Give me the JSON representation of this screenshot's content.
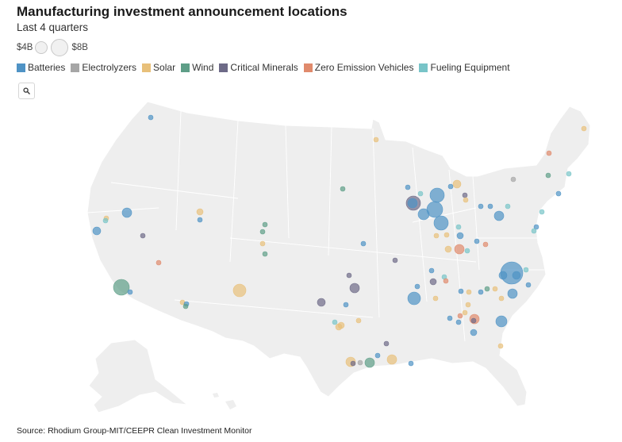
{
  "header": {
    "title": "Manufacturing investment announcement locations",
    "subtitle": "Last 4 quarters"
  },
  "size_legend": {
    "small_label": "$4B",
    "large_label": "$8B"
  },
  "categories": [
    {
      "key": "batteries",
      "label": "Batteries",
      "color": "#4f93c5"
    },
    {
      "key": "electrolyzers",
      "label": "Electrolyzers",
      "color": "#a6a6a6"
    },
    {
      "key": "solar",
      "label": "Solar",
      "color": "#e8c07a"
    },
    {
      "key": "wind",
      "label": "Wind",
      "color": "#5e9e87"
    },
    {
      "key": "critical_minerals",
      "label": "Critical Minerals",
      "color": "#6d6a87"
    },
    {
      "key": "zev",
      "label": "Zero Emission Vehicles",
      "color": "#e08a6c"
    },
    {
      "key": "fueling",
      "label": "Fueling Equipment",
      "color": "#78c4c8"
    }
  ],
  "icons": {
    "search": "search-icon"
  },
  "source": "Source: Rhodium Group-MIT/CEEPR Clean Investment Monitor"
}
